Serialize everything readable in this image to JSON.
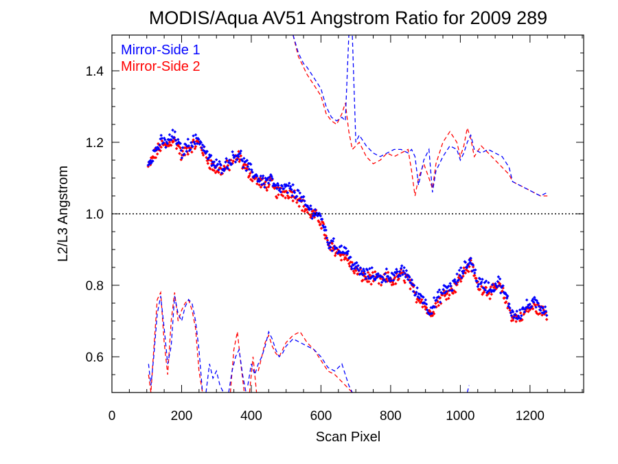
{
  "chart_data": {
    "type": "scatter",
    "title": "MODIS/Aqua AV51 Angstrom Ratio for 2009 289",
    "xlabel": "Scan Pixel",
    "ylabel": "L2/L3 Angstrom",
    "xlim": [
      0,
      1354
    ],
    "ylim": [
      0.5,
      1.5
    ],
    "xticks": [
      0,
      200,
      400,
      600,
      800,
      1000,
      1200
    ],
    "yticks": [
      0.6,
      0.8,
      1.0,
      1.2,
      1.4
    ],
    "xtick_labels": [
      "0",
      "200",
      "400",
      "600",
      "800",
      "1000",
      "1200"
    ],
    "ytick_labels": [
      "0.6",
      "0.8",
      "1.0",
      "1.2",
      "1.4"
    ],
    "reference_line": 1.0,
    "legend_position": "top-left",
    "colors": {
      "ms1": "#0000ff",
      "ms2": "#ff0000",
      "axes": "#000000"
    },
    "series": [
      {
        "name": "Mirror-Side 1",
        "color": "#0000ff",
        "mean": {
          "x": [
            104,
            120,
            140,
            160,
            175,
            190,
            200,
            215,
            230,
            250,
            270,
            290,
            310,
            330,
            350,
            365,
            380,
            400,
            420,
            440,
            455,
            470,
            490,
            510,
            530,
            550,
            570,
            590,
            605,
            620,
            640,
            655,
            670,
            690,
            710,
            730,
            750,
            770,
            790,
            810,
            830,
            850,
            870,
            890,
            910,
            920,
            940,
            960,
            980,
            1000,
            1020,
            1030,
            1050,
            1070,
            1090,
            1110,
            1130,
            1150,
            1170,
            1190,
            1210,
            1230,
            1250
          ],
          "y": [
            1.14,
            1.17,
            1.2,
            1.2,
            1.22,
            1.2,
            1.17,
            1.19,
            1.2,
            1.21,
            1.17,
            1.14,
            1.13,
            1.14,
            1.16,
            1.17,
            1.14,
            1.12,
            1.1,
            1.09,
            1.1,
            1.07,
            1.07,
            1.07,
            1.06,
            1.03,
            1.01,
            1.0,
            0.98,
            0.92,
            0.91,
            0.9,
            0.9,
            0.86,
            0.84,
            0.83,
            0.83,
            0.82,
            0.83,
            0.82,
            0.84,
            0.83,
            0.78,
            0.77,
            0.73,
            0.74,
            0.77,
            0.79,
            0.8,
            0.83,
            0.86,
            0.87,
            0.81,
            0.8,
            0.79,
            0.81,
            0.77,
            0.72,
            0.72,
            0.74,
            0.75,
            0.74,
            0.73
          ]
        },
        "upper": {
          "x": [
            520,
            535,
            550,
            560,
            580,
            600,
            615,
            630,
            645,
            660,
            670,
            680,
            690,
            700,
            710,
            730,
            750,
            770,
            790,
            810,
            830,
            850,
            860,
            870,
            880,
            895,
            910,
            920,
            930,
            950,
            970,
            990,
            1000,
            1010,
            1020,
            1030,
            1040,
            1060,
            1080,
            1100,
            1120,
            1140,
            1150,
            1170,
            1190,
            1210,
            1230,
            1250
          ],
          "y": [
            1.5,
            1.45,
            1.42,
            1.41,
            1.38,
            1.35,
            1.3,
            1.27,
            1.26,
            1.27,
            1.26,
            1.5,
            1.5,
            1.2,
            1.22,
            1.19,
            1.17,
            1.16,
            1.17,
            1.18,
            1.18,
            1.17,
            1.18,
            1.16,
            1.08,
            1.15,
            1.18,
            1.06,
            1.12,
            1.16,
            1.19,
            1.18,
            1.15,
            1.17,
            1.2,
            1.22,
            1.18,
            1.17,
            1.18,
            1.17,
            1.16,
            1.13,
            1.09,
            1.08,
            1.07,
            1.06,
            1.05,
            1.06
          ]
        },
        "lower": [
          {
            "x": [
              105,
              112,
              120,
              130,
              140,
              150,
              160,
              170,
              180,
              190,
              200,
              210,
              220,
              230,
              240,
              250,
              260
            ],
            "y": [
              0.58,
              0.52,
              0.6,
              0.72,
              0.77,
              0.68,
              0.58,
              0.63,
              0.77,
              0.72,
              0.7,
              0.74,
              0.76,
              0.75,
              0.7,
              0.62,
              0.5
            ]
          },
          {
            "x": [
              270,
              280,
              290,
              300,
              310,
              320
            ],
            "y": [
              0.5,
              0.58,
              0.54,
              0.56,
              0.52,
              0.5
            ]
          },
          {
            "x": [
              335,
              345,
              355,
              365,
              375,
              385
            ],
            "y": [
              0.5,
              0.56,
              0.6,
              0.62,
              0.55,
              0.5
            ]
          },
          {
            "x": [
              390,
              400,
              410,
              420,
              430,
              440,
              450,
              460,
              470,
              480,
              490,
              500,
              520,
              540,
              560,
              580,
              600,
              620,
              640,
              660,
              680,
              690
            ],
            "y": [
              0.52,
              0.58,
              0.55,
              0.58,
              0.6,
              0.63,
              0.67,
              0.65,
              0.62,
              0.6,
              0.61,
              0.63,
              0.65,
              0.64,
              0.63,
              0.62,
              0.6,
              0.57,
              0.56,
              0.58,
              0.52,
              0.5
            ]
          },
          {
            "x": [
              1020,
              1025
            ],
            "y": [
              0.5,
              0.52
            ]
          }
        ]
      },
      {
        "name": "Mirror-Side 2",
        "color": "#ff0000",
        "mean": {
          "x": [
            104,
            120,
            140,
            160,
            175,
            190,
            200,
            215,
            230,
            250,
            270,
            290,
            310,
            330,
            350,
            365,
            380,
            400,
            420,
            440,
            455,
            470,
            490,
            510,
            530,
            550,
            570,
            590,
            605,
            620,
            640,
            655,
            670,
            690,
            710,
            730,
            750,
            770,
            790,
            810,
            830,
            850,
            870,
            890,
            910,
            920,
            940,
            960,
            980,
            1000,
            1020,
            1030,
            1050,
            1070,
            1090,
            1110,
            1130,
            1150,
            1170,
            1190,
            1210,
            1230,
            1250
          ],
          "y": [
            1.13,
            1.16,
            1.19,
            1.19,
            1.21,
            1.19,
            1.16,
            1.18,
            1.19,
            1.2,
            1.16,
            1.13,
            1.12,
            1.13,
            1.15,
            1.16,
            1.13,
            1.11,
            1.09,
            1.08,
            1.09,
            1.06,
            1.06,
            1.06,
            1.05,
            1.02,
            1.0,
            0.99,
            0.97,
            0.91,
            0.9,
            0.89,
            0.88,
            0.85,
            0.83,
            0.82,
            0.82,
            0.81,
            0.82,
            0.81,
            0.83,
            0.82,
            0.77,
            0.76,
            0.72,
            0.73,
            0.76,
            0.78,
            0.79,
            0.82,
            0.85,
            0.86,
            0.8,
            0.79,
            0.78,
            0.8,
            0.76,
            0.71,
            0.71,
            0.73,
            0.74,
            0.73,
            0.72
          ]
        },
        "upper": {
          "x": [
            520,
            535,
            550,
            560,
            580,
            600,
            615,
            630,
            645,
            660,
            670,
            680,
            690,
            700,
            710,
            730,
            750,
            770,
            790,
            810,
            830,
            850,
            860,
            870,
            880,
            895,
            910,
            920,
            930,
            950,
            970,
            990,
            1000,
            1010,
            1020,
            1030,
            1040,
            1060,
            1080,
            1100,
            1120,
            1140,
            1150,
            1170,
            1190,
            1210,
            1230,
            1250
          ],
          "y": [
            1.5,
            1.44,
            1.41,
            1.39,
            1.36,
            1.33,
            1.28,
            1.26,
            1.25,
            1.28,
            1.31,
            1.23,
            1.18,
            1.19,
            1.2,
            1.16,
            1.14,
            1.15,
            1.17,
            1.16,
            1.17,
            1.18,
            1.12,
            1.05,
            1.1,
            1.14,
            1.1,
            1.07,
            1.14,
            1.2,
            1.23,
            1.2,
            1.16,
            1.19,
            1.24,
            1.21,
            1.16,
            1.19,
            1.17,
            1.15,
            1.13,
            1.11,
            1.09,
            1.08,
            1.07,
            1.06,
            1.05,
            1.05
          ]
        },
        "lower": [
          {
            "x": [
              105,
              112,
              120,
              130,
              140,
              150,
              160,
              170,
              180,
              190,
              200,
              210,
              220,
              230,
              240,
              250,
              260
            ],
            "y": [
              0.55,
              0.5,
              0.62,
              0.76,
              0.78,
              0.64,
              0.55,
              0.7,
              0.78,
              0.7,
              0.73,
              0.75,
              0.76,
              0.73,
              0.68,
              0.56,
              0.5
            ]
          },
          {
            "x": [
              340,
              350,
              360,
              370,
              380
            ],
            "y": [
              0.5,
              0.62,
              0.67,
              0.58,
              0.5
            ]
          },
          {
            "x": [
              395,
              405,
              415
            ],
            "y": [
              0.5,
              0.6,
              0.5
            ]
          },
          {
            "x": [
              420,
              430,
              440,
              450,
              460,
              470,
              480,
              490,
              500,
              520,
              540,
              560,
              580,
              600,
              620,
              640,
              660,
              680,
              690
            ],
            "y": [
              0.56,
              0.6,
              0.64,
              0.66,
              0.63,
              0.61,
              0.6,
              0.62,
              0.64,
              0.66,
              0.67,
              0.64,
              0.62,
              0.59,
              0.56,
              0.55,
              0.53,
              0.51,
              0.5
            ]
          }
        ]
      }
    ]
  }
}
